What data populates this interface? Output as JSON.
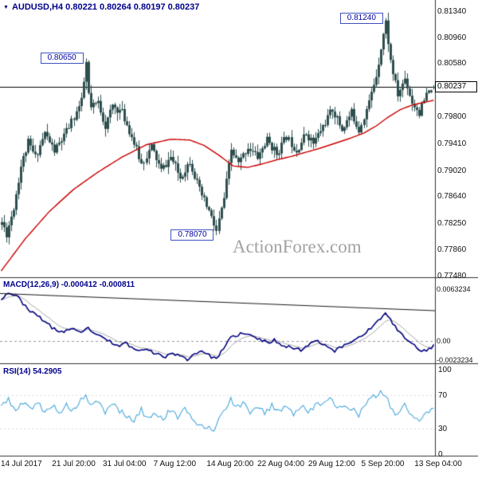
{
  "header": {
    "ohlc": "AUDUSD,H4 0.80221 0.80264 0.80197 0.80237"
  },
  "watermark": "ActionForex.com",
  "panels": {
    "macd": {
      "label": "MACD(12,26,9) -0.000412 -0.000811",
      "axis": [
        {
          "text": "0.0063234",
          "value": 0.0063234
        },
        {
          "text": "0.00",
          "value": 0
        },
        {
          "text": "-0.0023234",
          "value": -0.0023234
        }
      ]
    },
    "rsi": {
      "label": "RSI(14) 54.2905",
      "axis": [
        {
          "text": "100",
          "value": 100
        },
        {
          "text": "70",
          "value": 70
        },
        {
          "text": "30",
          "value": 30
        },
        {
          "text": "0",
          "value": 0
        }
      ]
    }
  },
  "price_axis": {
    "labels": [
      "0.81340",
      "0.80960",
      "0.80580",
      "0.79800",
      "0.79410",
      "0.79020",
      "0.78640",
      "0.78250",
      "0.77860",
      "0.77480"
    ],
    "current": "0.80237"
  },
  "x_axis": [
    {
      "text": "14 Jul 2017",
      "index": 0
    },
    {
      "text": "21 Jul 20:00",
      "index": 23
    },
    {
      "text": "31 Jul 04:00",
      "index": 44
    },
    {
      "text": "7 Aug 12:00",
      "index": 65
    },
    {
      "text": "14 Aug 20:00",
      "index": 87
    },
    {
      "text": "22 Aug 04:00",
      "index": 108
    },
    {
      "text": "29 Aug 12:00",
      "index": 129
    },
    {
      "text": "5 Sep 20:00",
      "index": 151
    },
    {
      "text": "13 Sep 04:00",
      "index": 173
    }
  ],
  "colors": {
    "candle": "#2f4f4f",
    "ma_line": "#cc0000",
    "macd_line": "#000080",
    "macd_signal": "#a8a8a8",
    "rsi_line": "#4aa8dc",
    "current_price_line": "#000000",
    "separator": "#333333",
    "annotation_border": "#3f51c1",
    "navy_text": "#00008b"
  },
  "chart_data": {
    "type": "candlestick",
    "symbol": "AUDUSD",
    "timeframe": "H4",
    "title": "AUDUSD,H4",
    "last_ohlc": {
      "open": 0.80221,
      "high": 0.80264,
      "low": 0.80197,
      "close": 0.80237
    },
    "price_range": {
      "top": 0.8134,
      "bottom": 0.7748
    },
    "candle_count": 180,
    "close_path": [
      [
        0,
        0.7826
      ],
      [
        2,
        0.7809
      ],
      [
        5,
        0.7848
      ],
      [
        8,
        0.7908
      ],
      [
        11,
        0.7942
      ],
      [
        14,
        0.7921
      ],
      [
        18,
        0.7956
      ],
      [
        22,
        0.793
      ],
      [
        26,
        0.7951
      ],
      [
        30,
        0.798
      ],
      [
        33,
        0.8002
      ],
      [
        35,
        0.8058
      ],
      [
        36,
        0.8012
      ],
      [
        37,
        0.7992
      ],
      [
        40,
        0.8001
      ],
      [
        43,
        0.7966
      ],
      [
        46,
        0.7996
      ],
      [
        50,
        0.7986
      ],
      [
        54,
        0.7951
      ],
      [
        58,
        0.7911
      ],
      [
        62,
        0.7936
      ],
      [
        66,
        0.7901
      ],
      [
        70,
        0.7921
      ],
      [
        74,
        0.7891
      ],
      [
        78,
        0.7916
      ],
      [
        82,
        0.7872
      ],
      [
        86,
        0.7842
      ],
      [
        89,
        0.7812
      ],
      [
        92,
        0.7861
      ],
      [
        95,
        0.7931
      ],
      [
        98,
        0.7911
      ],
      [
        102,
        0.7936
      ],
      [
        106,
        0.7921
      ],
      [
        110,
        0.7946
      ],
      [
        114,
        0.7926
      ],
      [
        118,
        0.7951
      ],
      [
        122,
        0.7931
      ],
      [
        126,
        0.7956
      ],
      [
        129,
        0.7941
      ],
      [
        133,
        0.7966
      ],
      [
        137,
        0.7991
      ],
      [
        141,
        0.7961
      ],
      [
        145,
        0.7986
      ],
      [
        148,
        0.7961
      ],
      [
        152,
        0.8001
      ],
      [
        155,
        0.8041
      ],
      [
        158,
        0.8101
      ],
      [
        159,
        0.8118
      ],
      [
        161,
        0.8061
      ],
      [
        164,
        0.8011
      ],
      [
        167,
        0.8036
      ],
      [
        170,
        0.8001
      ],
      [
        173,
        0.7986
      ],
      [
        176,
        0.8011
      ],
      [
        179,
        0.80237
      ]
    ],
    "ma_red_path": [
      [
        0,
        0.7755
      ],
      [
        10,
        0.7802
      ],
      [
        20,
        0.7842
      ],
      [
        30,
        0.7874
      ],
      [
        40,
        0.7899
      ],
      [
        50,
        0.7921
      ],
      [
        60,
        0.7939
      ],
      [
        70,
        0.7947
      ],
      [
        78,
        0.7946
      ],
      [
        84,
        0.7938
      ],
      [
        90,
        0.7924
      ],
      [
        96,
        0.7908
      ],
      [
        102,
        0.7906
      ],
      [
        108,
        0.7911
      ],
      [
        114,
        0.7917
      ],
      [
        120,
        0.7922
      ],
      [
        126,
        0.7928
      ],
      [
        132,
        0.7934
      ],
      [
        138,
        0.7941
      ],
      [
        144,
        0.7948
      ],
      [
        150,
        0.7956
      ],
      [
        155,
        0.7966
      ],
      [
        160,
        0.7979
      ],
      [
        165,
        0.799
      ],
      [
        170,
        0.7997
      ],
      [
        175,
        0.8001
      ],
      [
        179,
        0.8004
      ]
    ],
    "key_points": [
      {
        "label": "0.80650",
        "index": 35,
        "price": 0.8065,
        "type": "high"
      },
      {
        "label": "0.81240",
        "index": 159,
        "price": 0.8124,
        "type": "high"
      },
      {
        "label": "0.78070",
        "index": 89,
        "price": 0.7807,
        "type": "low"
      }
    ],
    "macd": {
      "value": -0.000412,
      "signal": -0.000811,
      "range": {
        "top": 0.0063234,
        "bottom": -0.0023234
      },
      "path": [
        [
          0,
          0.0052
        ],
        [
          3,
          0.0059
        ],
        [
          6,
          0.0056
        ],
        [
          10,
          0.0043
        ],
        [
          13,
          0.0034
        ],
        [
          16,
          0.0029
        ],
        [
          18,
          0.0024
        ],
        [
          21,
          0.0016
        ],
        [
          25,
          0.0011
        ],
        [
          29,
          0.0015
        ],
        [
          33,
          0.0009
        ],
        [
          36,
          0.0016
        ],
        [
          40,
          0.0006
        ],
        [
          44,
          0.0001
        ],
        [
          48,
          -0.0006
        ],
        [
          52,
          -0.0003
        ],
        [
          56,
          -0.0012
        ],
        [
          60,
          -0.0008
        ],
        [
          64,
          -0.0016
        ],
        [
          68,
          -0.0019
        ],
        [
          71,
          -0.0014
        ],
        [
          74,
          -0.0019
        ],
        [
          77,
          -0.0022
        ],
        [
          80,
          -0.0016
        ],
        [
          83,
          -0.0011
        ],
        [
          86,
          -0.0018
        ],
        [
          89,
          -0.0021
        ],
        [
          92,
          -0.001
        ],
        [
          95,
          0.0004
        ],
        [
          99,
          0.0009
        ],
        [
          103,
          0.0007
        ],
        [
          107,
          0.0002
        ],
        [
          110,
          -0.0002
        ],
        [
          113,
          0.0001
        ],
        [
          116,
          -0.0004
        ],
        [
          120,
          -0.0008
        ],
        [
          124,
          -0.0011
        ],
        [
          128,
          -0.0002
        ],
        [
          131,
          0.0001
        ],
        [
          134,
          -0.0005
        ],
        [
          138,
          -0.0012
        ],
        [
          141,
          -0.0007
        ],
        [
          144,
          -0.0002
        ],
        [
          147,
          0.0003
        ],
        [
          150,
          0.0009
        ],
        [
          154,
          0.0018
        ],
        [
          157,
          0.0028
        ],
        [
          159,
          0.0033
        ],
        [
          162,
          0.0022
        ],
        [
          165,
          0.001
        ],
        [
          168,
          0.0001
        ],
        [
          171,
          -0.0006
        ],
        [
          174,
          -0.0011
        ],
        [
          176,
          -0.0013
        ],
        [
          178,
          -0.0008
        ],
        [
          179,
          -0.0004
        ]
      ],
      "trendline": [
        [
          0,
          0.0058
        ],
        [
          1,
          0.0037
        ]
      ]
    },
    "rsi": {
      "value": 54.2905,
      "path": [
        [
          0,
          56
        ],
        [
          3,
          66
        ],
        [
          6,
          50
        ],
        [
          9,
          61
        ],
        [
          12,
          54
        ],
        [
          15,
          62
        ],
        [
          18,
          48
        ],
        [
          21,
          59
        ],
        [
          24,
          50
        ],
        [
          27,
          57
        ],
        [
          30,
          52
        ],
        [
          33,
          63
        ],
        [
          35,
          71
        ],
        [
          37,
          56
        ],
        [
          40,
          62
        ],
        [
          43,
          50
        ],
        [
          46,
          60
        ],
        [
          49,
          52
        ],
        [
          52,
          44
        ],
        [
          55,
          40
        ],
        [
          58,
          52
        ],
        [
          61,
          42
        ],
        [
          64,
          50
        ],
        [
          67,
          40
        ],
        [
          70,
          53
        ],
        [
          73,
          43
        ],
        [
          76,
          53
        ],
        [
          79,
          40
        ],
        [
          82,
          36
        ],
        [
          85,
          32
        ],
        [
          88,
          30
        ],
        [
          90,
          40
        ],
        [
          92,
          52
        ],
        [
          95,
          64
        ],
        [
          97,
          55
        ],
        [
          100,
          60
        ],
        [
          103,
          50
        ],
        [
          106,
          58
        ],
        [
          109,
          48
        ],
        [
          112,
          58
        ],
        [
          115,
          50
        ],
        [
          118,
          59
        ],
        [
          121,
          47
        ],
        [
          124,
          57
        ],
        [
          127,
          49
        ],
        [
          130,
          59
        ],
        [
          133,
          62
        ],
        [
          136,
          66
        ],
        [
          139,
          52
        ],
        [
          142,
          60
        ],
        [
          145,
          54
        ],
        [
          148,
          47
        ],
        [
          151,
          60
        ],
        [
          154,
          67
        ],
        [
          157,
          73
        ],
        [
          159,
          70
        ],
        [
          161,
          58
        ],
        [
          163,
          46
        ],
        [
          165,
          52
        ],
        [
          167,
          58
        ],
        [
          169,
          47
        ],
        [
          171,
          43
        ],
        [
          173,
          41
        ],
        [
          175,
          48
        ],
        [
          177,
          52
        ],
        [
          179,
          54.29
        ]
      ]
    }
  }
}
